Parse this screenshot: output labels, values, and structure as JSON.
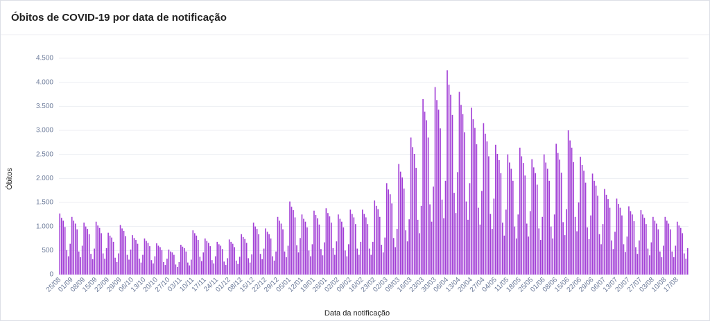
{
  "chart_data": {
    "type": "bar",
    "title": "Óbitos de COVID-19 por data de notificação",
    "ylabel": "Óbitos",
    "xlabel": "Data da notificação",
    "color": "#a23fd6",
    "grid": true,
    "ylim": [
      0,
      4500
    ],
    "yticks": [
      0,
      500,
      {
        "value": 1000,
        "label": "1.000"
      },
      {
        "value": 1500,
        "label": "1.500"
      },
      {
        "value": 2000,
        "label": "2.000"
      },
      {
        "value": 2500,
        "label": "2.500"
      },
      {
        "value": 3000,
        "label": "3.000"
      },
      {
        "value": 3500,
        "label": "3.500"
      },
      {
        "value": 4000,
        "label": "4.000"
      },
      {
        "value": 4500,
        "label": "4.500"
      }
    ],
    "categories": [
      "25/08",
      null,
      null,
      null,
      null,
      null,
      null,
      "01/09",
      null,
      null,
      null,
      null,
      null,
      null,
      "08/09",
      null,
      null,
      null,
      null,
      null,
      null,
      "15/09",
      null,
      null,
      null,
      null,
      null,
      null,
      "22/09",
      null,
      null,
      null,
      null,
      null,
      null,
      "29/09",
      null,
      null,
      null,
      null,
      null,
      null,
      "06/10",
      null,
      null,
      null,
      null,
      null,
      null,
      "13/10",
      null,
      null,
      null,
      null,
      null,
      null,
      "20/10",
      null,
      null,
      null,
      null,
      null,
      null,
      "27/10",
      null,
      null,
      null,
      null,
      null,
      null,
      "03/11",
      null,
      null,
      null,
      null,
      null,
      null,
      "10/11",
      null,
      null,
      null,
      null,
      null,
      null,
      "17/11",
      null,
      null,
      null,
      null,
      null,
      null,
      "24/11",
      null,
      null,
      null,
      null,
      null,
      null,
      "01/12",
      null,
      null,
      null,
      null,
      null,
      null,
      "08/12",
      null,
      null,
      null,
      null,
      null,
      null,
      "15/12",
      null,
      null,
      null,
      null,
      null,
      null,
      "22/12",
      null,
      null,
      null,
      null,
      null,
      null,
      "29/12",
      null,
      null,
      null,
      null,
      null,
      null,
      "05/01",
      null,
      null,
      null,
      null,
      null,
      null,
      "12/01",
      null,
      null,
      null,
      null,
      null,
      null,
      "19/01",
      null,
      null,
      null,
      null,
      null,
      null,
      "26/01",
      null,
      null,
      null,
      null,
      null,
      null,
      "02/02",
      null,
      null,
      null,
      null,
      null,
      null,
      "09/02",
      null,
      null,
      null,
      null,
      null,
      null,
      "16/02",
      null,
      null,
      null,
      null,
      null,
      null,
      "23/02",
      null,
      null,
      null,
      null,
      null,
      null,
      "02/03",
      null,
      null,
      null,
      null,
      null,
      null,
      "09/03",
      null,
      null,
      null,
      null,
      null,
      null,
      "16/03",
      null,
      null,
      null,
      null,
      null,
      null,
      "23/03",
      null,
      null,
      null,
      null,
      null,
      null,
      "30/03",
      null,
      null,
      null,
      null,
      null,
      null,
      "06/04",
      null,
      null,
      null,
      null,
      null,
      null,
      "13/04",
      null,
      null,
      null,
      null,
      null,
      null,
      "20/04",
      null,
      null,
      null,
      null,
      null,
      null,
      "27/04",
      null,
      null,
      null,
      null,
      null,
      null,
      "04/05",
      null,
      null,
      null,
      null,
      null,
      null,
      "11/05",
      null,
      null,
      null,
      null,
      null,
      null,
      "18/05",
      null,
      null,
      null,
      null,
      null,
      null,
      "25/05",
      null,
      null,
      null,
      null,
      null,
      null,
      "01/06",
      null,
      null,
      null,
      null,
      null,
      null,
      "08/06",
      null,
      null,
      null,
      null,
      null,
      null,
      "15/06",
      null,
      null,
      null,
      null,
      null,
      null,
      "22/06",
      null,
      null,
      null,
      null,
      null,
      null,
      "29/06",
      null,
      null,
      null,
      null,
      null,
      null,
      "06/07",
      null,
      null,
      null,
      null,
      null,
      null,
      "13/07",
      null,
      null,
      null,
      null,
      null,
      null,
      "20/07",
      null,
      null,
      null,
      null,
      null,
      null,
      "27/07",
      null,
      null,
      null,
      null,
      null,
      null,
      "03/08",
      null,
      null,
      null,
      null,
      null,
      null,
      "10/08",
      null,
      null,
      null,
      null,
      null,
      null,
      "17/08",
      null,
      null,
      null,
      null,
      null,
      null
    ],
    "values": [
      1270,
      1180,
      1120,
      990,
      510,
      380,
      640,
      1200,
      1120,
      1060,
      940,
      480,
      360,
      600,
      1080,
      1000,
      950,
      840,
      430,
      320,
      540,
      1100,
      1020,
      970,
      860,
      440,
      330,
      550,
      870,
      810,
      770,
      680,
      350,
      260,
      440,
      1030,
      960,
      910,
      800,
      410,
      310,
      520,
      820,
      760,
      720,
      640,
      330,
      250,
      410,
      750,
      700,
      660,
      590,
      300,
      230,
      380,
      650,
      600,
      570,
      510,
      260,
      200,
      330,
      520,
      480,
      460,
      410,
      210,
      160,
      260,
      620,
      580,
      550,
      480,
      250,
      190,
      310,
      920,
      860,
      810,
      720,
      370,
      280,
      460,
      750,
      700,
      660,
      590,
      300,
      230,
      380,
      680,
      630,
      600,
      530,
      270,
      200,
      340,
      730,
      680,
      640,
      570,
      290,
      220,
      370,
      840,
      780,
      740,
      660,
      340,
      250,
      420,
      1080,
      1000,
      950,
      840,
      430,
      320,
      540,
      960,
      890,
      840,
      750,
      380,
      290,
      480,
      1200,
      1120,
      1060,
      940,
      480,
      360,
      600,
      1520,
      1410,
      1340,
      1190,
      610,
      460,
      760,
      1250,
      1160,
      1100,
      980,
      500,
      380,
      630,
      1330,
      1240,
      1170,
      1040,
      530,
      400,
      670,
      1380,
      1280,
      1210,
      1080,
      550,
      410,
      690,
      1250,
      1160,
      1100,
      980,
      500,
      380,
      630,
      1350,
      1260,
      1190,
      1050,
      540,
      410,
      680,
      1350,
      1260,
      1190,
      1050,
      540,
      410,
      680,
      1540,
      1430,
      1360,
      1200,
      620,
      460,
      770,
      1900,
      1770,
      1670,
      1480,
      760,
      570,
      950,
      2300,
      2140,
      2020,
      1790,
      920,
      690,
      1150,
      2850,
      2650,
      2510,
      2220,
      1140,
      860,
      1430,
      3650,
      3390,
      3210,
      2850,
      1460,
      1100,
      1830,
      3900,
      3630,
      3430,
      3040,
      1560,
      1170,
      1950,
      4250,
      3950,
      3740,
      3320,
      1700,
      1280,
      2130,
      3800,
      3530,
      3340,
      2960,
      1520,
      1140,
      1900,
      3470,
      3230,
      3050,
      2710,
      1390,
      1040,
      1740,
      3150,
      2930,
      2770,
      2460,
      1260,
      950,
      1580,
      2700,
      2510,
      2380,
      2110,
      1080,
      810,
      1350,
      2500,
      2330,
      2200,
      1950,
      1000,
      750,
      1250,
      2640,
      2460,
      2320,
      2060,
      1060,
      790,
      1320,
      2400,
      2230,
      2110,
      1870,
      960,
      720,
      1200,
      2500,
      2330,
      2200,
      1950,
      1000,
      750,
      1250,
      2720,
      2530,
      2390,
      2120,
      1090,
      820,
      1360,
      3000,
      2790,
      2640,
      2340,
      1200,
      900,
      1500,
      2450,
      2280,
      2160,
      1910,
      980,
      740,
      1230,
      2100,
      1950,
      1850,
      1640,
      840,
      630,
      1050,
      1780,
      1660,
      1570,
      1390,
      710,
      530,
      890,
      1580,
      1470,
      1390,
      1230,
      630,
      470,
      790,
      1420,
      1320,
      1250,
      1110,
      570,
      430,
      710,
      1340,
      1250,
      1180,
      1050,
      540,
      400,
      670,
      1200,
      1120,
      1060,
      940,
      480,
      360,
      600,
      1200,
      1120,
      1060,
      940,
      480,
      360,
      600,
      1100,
      1020,
      970,
      860,
      440,
      330,
      550
    ]
  }
}
